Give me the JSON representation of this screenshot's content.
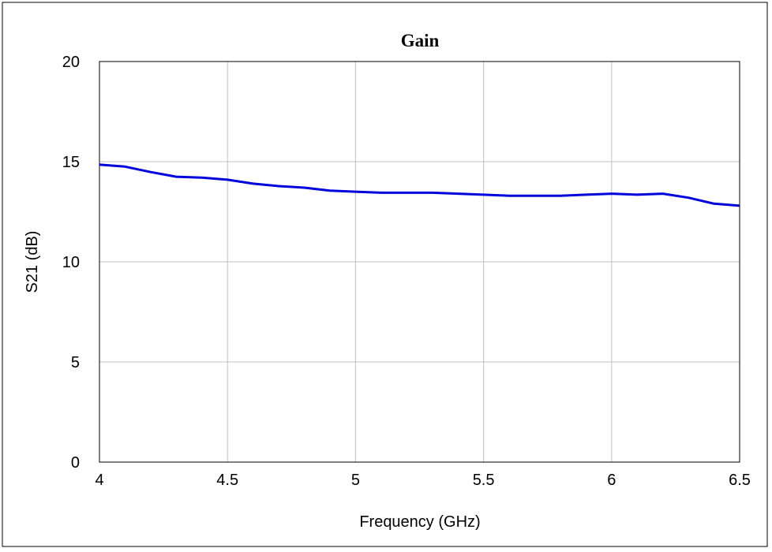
{
  "chart_data": {
    "type": "line",
    "title": "Gain",
    "xlabel": "Frequency (GHz)",
    "ylabel": "S21 (dB)",
    "xlim": [
      4,
      6.5
    ],
    "ylim": [
      0,
      20
    ],
    "x_ticks": [
      4,
      4.5,
      5,
      5.5,
      6,
      6.5
    ],
    "y_ticks": [
      0,
      5,
      10,
      15,
      20
    ],
    "x_tick_labels": [
      "4",
      "4.5",
      "5",
      "5.5",
      "6",
      "6.5"
    ],
    "y_tick_labels": [
      "0",
      "5",
      "10",
      "15",
      "20"
    ],
    "grid": true,
    "legend": "none",
    "series": [
      {
        "color": "#0000dd",
        "x": [
          4.0,
          4.1,
          4.2,
          4.3,
          4.4,
          4.5,
          4.6,
          4.7,
          4.8,
          4.9,
          5.0,
          5.1,
          5.2,
          5.3,
          5.4,
          5.5,
          5.6,
          5.7,
          5.8,
          5.9,
          6.0,
          6.1,
          6.2,
          6.3,
          6.4,
          6.5
        ],
        "y": [
          14.85,
          14.75,
          14.48,
          14.25,
          14.2,
          14.1,
          13.9,
          13.78,
          13.7,
          13.55,
          13.5,
          13.45,
          13.45,
          13.45,
          13.4,
          13.35,
          13.3,
          13.3,
          13.3,
          13.35,
          13.4,
          13.35,
          13.4,
          13.2,
          12.9,
          12.8
        ]
      }
    ]
  }
}
